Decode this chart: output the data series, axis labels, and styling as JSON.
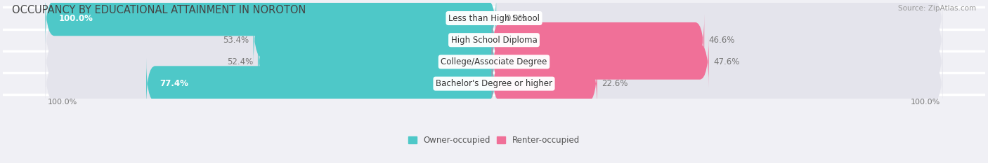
{
  "title": "OCCUPANCY BY EDUCATIONAL ATTAINMENT IN NOROTON",
  "source": "Source: ZipAtlas.com",
  "categories": [
    "Less than High School",
    "High School Diploma",
    "College/Associate Degree",
    "Bachelor's Degree or higher"
  ],
  "owner_pct": [
    100.0,
    53.4,
    52.4,
    77.4
  ],
  "renter_pct": [
    0.0,
    46.6,
    47.6,
    22.6
  ],
  "owner_color": "#4EC8C8",
  "renter_color": "#F07098",
  "bar_bg_color": "#E4E4EC",
  "owner_label": "Owner-occupied",
  "renter_label": "Renter-occupied",
  "title_fontsize": 10.5,
  "label_fontsize": 8.5,
  "axis_label_fontsize": 8,
  "bar_height": 0.62,
  "fig_width": 14.06,
  "fig_height": 2.33,
  "background_color": "#F0F0F5"
}
